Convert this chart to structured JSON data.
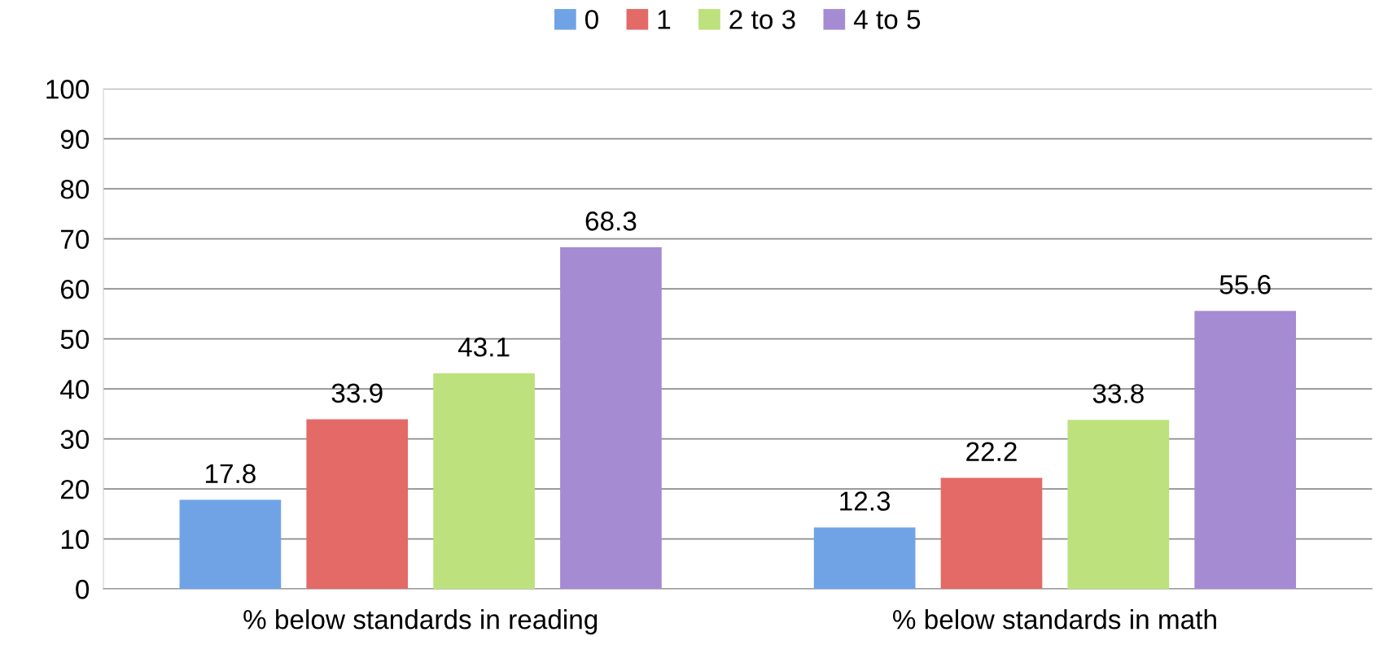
{
  "chart_data": {
    "type": "bar",
    "categories": [
      "% below standards in reading",
      "% below standards in math"
    ],
    "series": [
      {
        "name": "0",
        "color": "#6fa3e6",
        "values": [
          17.8,
          12.3
        ]
      },
      {
        "name": "1",
        "color": "#e36a66",
        "values": [
          33.9,
          22.2
        ]
      },
      {
        "name": "2 to 3",
        "color": "#bde17c",
        "values": [
          43.1,
          33.8
        ]
      },
      {
        "name": "4 to 5",
        "color": "#a58bd2",
        "values": [
          68.3,
          55.6
        ]
      }
    ],
    "ylim": [
      0,
      100
    ],
    "yticks": [
      0,
      10,
      20,
      30,
      40,
      50,
      60,
      70,
      80,
      90,
      100
    ],
    "grid": "y",
    "legend": "top",
    "data_labels": true
  }
}
